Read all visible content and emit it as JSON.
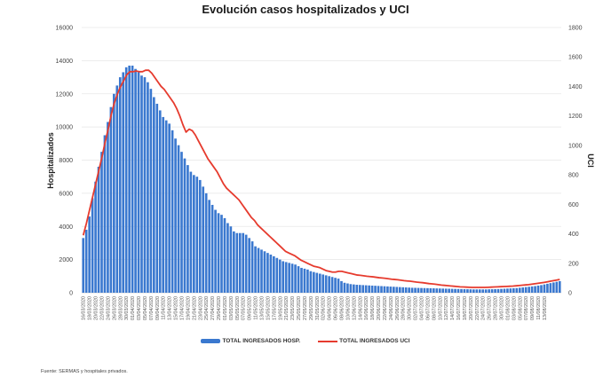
{
  "chart_data": {
    "type": "bar+line",
    "title": "Evolución casos hospitalizados y UCI",
    "ylabel": "Hospitalizados",
    "y2label": "UCI",
    "ylim": [
      0,
      16000
    ],
    "y2lim": [
      0,
      1800
    ],
    "yticks": [
      0,
      2000,
      4000,
      6000,
      8000,
      10000,
      12000,
      14000,
      16000
    ],
    "y2ticks": [
      0,
      200,
      400,
      600,
      800,
      1000,
      1200,
      1400,
      1600,
      1800
    ],
    "grid": true,
    "legend_position": "bottom",
    "x_start": "16/03/2020",
    "x_end": "13/08/2020",
    "x_tick_step_days": 2,
    "x_tick_labels": [
      "16/03/2020",
      "18/03/2020",
      "20/03/2020",
      "22/03/2020",
      "24/03/2020",
      "26/03/2020",
      "28/03/2020",
      "30/03/2020",
      "01/04/2020",
      "03/04/2020",
      "05/04/2020",
      "07/04/2020",
      "09/04/2020",
      "11/04/2020",
      "13/04/2020",
      "15/04/2020",
      "17/04/2020",
      "19/04/2020",
      "21/04/2020",
      "23/04/2020",
      "25/04/2020",
      "27/04/2020",
      "29/04/2020",
      "01/05/2020",
      "03/05/2020",
      "05/05/2020",
      "07/05/2020",
      "09/05/2020",
      "11/05/2020",
      "13/05/2020",
      "15/05/2020",
      "17/05/2020",
      "19/05/2020",
      "21/05/2020",
      "23/05/2020",
      "25/05/2020",
      "27/05/2020",
      "29/05/2020",
      "31/05/2020",
      "02/06/2020",
      "04/06/2020",
      "06/06/2020",
      "08/06/2020",
      "10/06/2020",
      "12/06/2020",
      "14/06/2020",
      "16/06/2020",
      "18/06/2020",
      "20/06/2020",
      "22/06/2020",
      "24/06/2020",
      "26/06/2020",
      "28/06/2020",
      "30/06/2020",
      "02/07/2020",
      "04/07/2020",
      "06/07/2020",
      "08/07/2020",
      "10/07/2020",
      "12/07/2020",
      "14/07/2020",
      "16/07/2020",
      "18/07/2020",
      "20/07/2020",
      "22/07/2020",
      "24/07/2020",
      "26/07/2020",
      "28/07/2020",
      "30/07/2020",
      "01/08/2020",
      "03/08/2020",
      "05/08/2020",
      "07/08/2020",
      "09/08/2020",
      "11/08/2020",
      "13/08/2020"
    ],
    "series": [
      {
        "name": "TOTAL INGRESADOS HOSP.",
        "type": "bar",
        "axis": "left",
        "color": "#3a78cf",
        "values": [
          3300,
          3800,
          4600,
          5700,
          6700,
          7600,
          8500,
          9500,
          10300,
          11200,
          12000,
          12500,
          13000,
          13300,
          13600,
          13700,
          13700,
          13500,
          13300,
          13100,
          13000,
          12700,
          12300,
          11800,
          11400,
          11000,
          10600,
          10400,
          10200,
          9800,
          9300,
          8900,
          8500,
          8100,
          7700,
          7300,
          7100,
          7000,
          6800,
          6400,
          6000,
          5600,
          5300,
          5000,
          4800,
          4700,
          4500,
          4200,
          4000,
          3700,
          3600,
          3600,
          3600,
          3500,
          3300,
          3100,
          2800,
          2700,
          2600,
          2500,
          2400,
          2300,
          2200,
          2100,
          2000,
          1900,
          1850,
          1800,
          1750,
          1700,
          1600,
          1500,
          1450,
          1400,
          1300,
          1250,
          1200,
          1150,
          1100,
          1050,
          1000,
          950,
          900,
          850,
          700,
          600,
          560,
          520,
          500,
          480,
          470,
          460,
          450,
          440,
          430,
          420,
          410,
          400,
          390,
          380,
          370,
          360,
          350,
          340,
          330,
          320,
          310,
          300,
          295,
          290,
          285,
          280,
          275,
          270,
          265,
          260,
          255,
          250,
          245,
          240,
          235,
          230,
          225,
          220,
          215,
          210,
          205,
          200,
          200,
          200,
          200,
          200,
          205,
          210,
          215,
          220,
          230,
          240,
          250,
          260,
          270,
          280,
          300,
          320,
          340,
          360,
          380,
          400,
          430,
          460,
          500,
          540,
          580,
          620,
          660,
          700
        ]
      },
      {
        "name": "TOTAL INGRESADOS UCI",
        "type": "line",
        "axis": "right",
        "color": "#e63b2e",
        "values": [
          390,
          470,
          560,
          650,
          740,
          830,
          920,
          1020,
          1110,
          1210,
          1290,
          1350,
          1400,
          1440,
          1480,
          1500,
          1500,
          1505,
          1500,
          1500,
          1510,
          1510,
          1490,
          1460,
          1430,
          1400,
          1380,
          1350,
          1320,
          1290,
          1250,
          1200,
          1140,
          1090,
          1110,
          1100,
          1070,
          1030,
          990,
          950,
          910,
          880,
          850,
          820,
          780,
          740,
          710,
          690,
          670,
          650,
          630,
          600,
          570,
          540,
          510,
          490,
          460,
          440,
          420,
          400,
          380,
          360,
          340,
          320,
          300,
          280,
          270,
          260,
          250,
          235,
          220,
          210,
          200,
          190,
          180,
          175,
          170,
          160,
          150,
          145,
          140,
          140,
          145,
          145,
          140,
          135,
          130,
          125,
          120,
          118,
          115,
          112,
          110,
          108,
          105,
          102,
          100,
          98,
          95,
          92,
          90,
          88,
          85,
          82,
          80,
          78,
          75,
          72,
          70,
          68,
          65,
          62,
          60,
          58,
          55,
          52,
          50,
          48,
          46,
          44,
          42,
          40,
          39,
          38,
          37,
          36,
          36,
          36,
          36,
          36,
          37,
          38,
          39,
          40,
          41,
          42,
          43,
          44,
          45,
          47,
          49,
          51,
          53,
          55,
          58,
          61,
          64,
          67,
          70,
          74,
          78,
          82,
          86,
          90
        ]
      }
    ]
  },
  "legend": {
    "bar_label": "TOTAL INGRESADOS HOSP.",
    "line_label": "TOTAL INGRESADOS UCI"
  },
  "source_note": "Fuente: SERMAS y hospitales privados."
}
